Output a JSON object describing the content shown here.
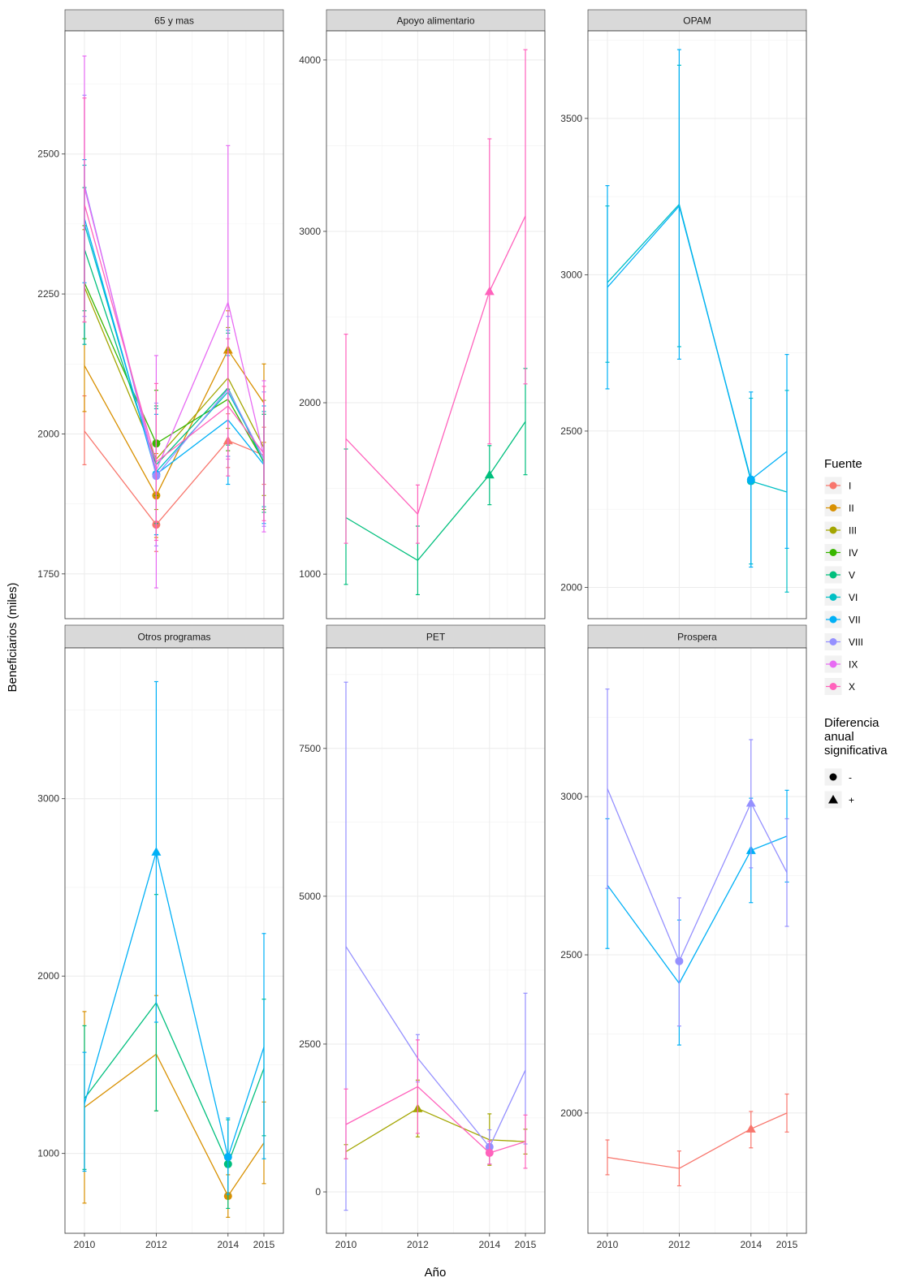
{
  "chart_data": {
    "type": "line",
    "y_axis_title": "Beneficiarios (miles)",
    "x_axis_title": "Año",
    "x_ticks": [
      "2010",
      "2012",
      "2014",
      "2015"
    ],
    "legend": {
      "placement": "right",
      "color_title": "Fuente",
      "series": [
        {
          "name": "I",
          "color": "#F8766D"
        },
        {
          "name": "II",
          "color": "#D89000"
        },
        {
          "name": "III",
          "color": "#A3A500"
        },
        {
          "name": "IV",
          "color": "#39B600"
        },
        {
          "name": "V",
          "color": "#00BF7D"
        },
        {
          "name": "VI",
          "color": "#00BFC4"
        },
        {
          "name": "VII",
          "color": "#00B0F6"
        },
        {
          "name": "VIII",
          "color": "#9590FF"
        },
        {
          "name": "IX",
          "color": "#E76BF3"
        },
        {
          "name": "X",
          "color": "#FF62BC"
        }
      ],
      "shape_title": "Diferencia anual significativa",
      "shapes": [
        {
          "label": "-",
          "shape": "circle"
        },
        {
          "label": "+",
          "shape": "triangle"
        }
      ]
    },
    "panels": [
      {
        "title": "65 y mas",
        "ylim": [
          1670,
          2720
        ],
        "yticks": [
          1750,
          2000,
          2250,
          2500
        ],
        "series": [
          {
            "fuente": "I",
            "points": [
              {
                "x": 2010,
                "y": 2005,
                "lo": 1945,
                "hi": 2068
              },
              {
                "x": 2012,
                "y": 1838,
                "lo": 1790,
                "hi": 1890,
                "marker": "circle"
              },
              {
                "x": 2014,
                "y": 1988,
                "lo": 1940,
                "hi": 2036,
                "marker": "triangle"
              },
              {
                "x": 2015,
                "y": 1962,
                "lo": 1910,
                "hi": 2012
              }
            ]
          },
          {
            "fuente": "II",
            "points": [
              {
                "x": 2010,
                "y": 2122,
                "lo": 2040,
                "hi": 2200
              },
              {
                "x": 2012,
                "y": 1890,
                "lo": 1815,
                "hi": 1965,
                "marker": "circle"
              },
              {
                "x": 2014,
                "y": 2150,
                "lo": 2080,
                "hi": 2220,
                "marker": "triangle"
              },
              {
                "x": 2015,
                "y": 2055,
                "lo": 1985,
                "hi": 2125
              }
            ]
          },
          {
            "fuente": "III",
            "points": [
              {
                "x": 2010,
                "y": 2262,
                "lo": 2160,
                "hi": 2365
              },
              {
                "x": 2012,
                "y": 1955,
                "lo": 1865,
                "hi": 2045
              },
              {
                "x": 2014,
                "y": 2100,
                "lo": 2010,
                "hi": 2190
              },
              {
                "x": 2015,
                "y": 1975,
                "lo": 1890,
                "hi": 2060
              }
            ]
          },
          {
            "fuente": "IV",
            "points": [
              {
                "x": 2010,
                "y": 2270,
                "lo": 2170,
                "hi": 2372
              },
              {
                "x": 2012,
                "y": 1983,
                "lo": 1890,
                "hi": 2078,
                "marker": "circle"
              },
              {
                "x": 2014,
                "y": 2062,
                "lo": 1970,
                "hi": 2150
              },
              {
                "x": 2015,
                "y": 1950,
                "lo": 1865,
                "hi": 2035
              }
            ]
          },
          {
            "fuente": "V",
            "points": [
              {
                "x": 2010,
                "y": 2330,
                "lo": 2220,
                "hi": 2440
              },
              {
                "x": 2012,
                "y": 1945,
                "lo": 1840,
                "hi": 2050
              },
              {
                "x": 2014,
                "y": 2082,
                "lo": 1980,
                "hi": 2180
              },
              {
                "x": 2015,
                "y": 1948,
                "lo": 1860,
                "hi": 2035
              }
            ]
          },
          {
            "fuente": "VI",
            "points": [
              {
                "x": 2010,
                "y": 2375,
                "lo": 2160,
                "hi": 2480
              },
              {
                "x": 2012,
                "y": 1932,
                "lo": 1820,
                "hi": 2045
              },
              {
                "x": 2014,
                "y": 2075,
                "lo": 1960,
                "hi": 2185
              },
              {
                "x": 2015,
                "y": 1955,
                "lo": 1870,
                "hi": 2040
              }
            ]
          },
          {
            "fuente": "VII",
            "points": [
              {
                "x": 2010,
                "y": 2385,
                "lo": 2270,
                "hi": 2490
              },
              {
                "x": 2012,
                "y": 1928,
                "lo": 1820,
                "hi": 2035,
                "marker": "circle"
              },
              {
                "x": 2014,
                "y": 2025,
                "lo": 1910,
                "hi": 2140
              },
              {
                "x": 2015,
                "y": 1945,
                "lo": 1840,
                "hi": 2050
              }
            ]
          },
          {
            "fuente": "VIII",
            "points": [
              {
                "x": 2010,
                "y": 2445,
                "lo": 2210,
                "hi": 2605
              },
              {
                "x": 2012,
                "y": 1925,
                "lo": 1800,
                "hi": 2055,
                "marker": "circle"
              },
              {
                "x": 2014,
                "y": 2080,
                "lo": 1960,
                "hi": 2210
              },
              {
                "x": 2015,
                "y": 1955,
                "lo": 1835,
                "hi": 2075
              }
            ]
          },
          {
            "fuente": "IX",
            "points": [
              {
                "x": 2010,
                "y": 2440,
                "lo": 2200,
                "hi": 2675
              },
              {
                "x": 2012,
                "y": 1935,
                "lo": 1725,
                "hi": 2140
              },
              {
                "x": 2014,
                "y": 2235,
                "lo": 1955,
                "hi": 2515
              },
              {
                "x": 2015,
                "y": 1960,
                "lo": 1825,
                "hi": 2095
              }
            ]
          },
          {
            "fuente": "X",
            "points": [
              {
                "x": 2010,
                "y": 2410,
                "lo": 2200,
                "hi": 2600
              },
              {
                "x": 2012,
                "y": 1950,
                "lo": 1810,
                "hi": 2090
              },
              {
                "x": 2014,
                "y": 2050,
                "lo": 1925,
                "hi": 2170
              },
              {
                "x": 2015,
                "y": 1965,
                "lo": 1845,
                "hi": 2085
              }
            ]
          }
        ]
      },
      {
        "title": "Apoyo alimentario",
        "ylim": [
          740,
          4170
        ],
        "yticks": [
          1000,
          2000,
          3000,
          4000
        ],
        "series": [
          {
            "fuente": "V",
            "points": [
              {
                "x": 2010,
                "y": 1330,
                "lo": 940,
                "hi": 1730
              },
              {
                "x": 2012,
                "y": 1080,
                "lo": 880,
                "hi": 1280
              },
              {
                "x": 2014,
                "y": 1580,
                "lo": 1405,
                "hi": 1750,
                "marker": "triangle"
              },
              {
                "x": 2015,
                "y": 1890,
                "lo": 1580,
                "hi": 2200
              }
            ]
          },
          {
            "fuente": "X",
            "points": [
              {
                "x": 2010,
                "y": 1790,
                "lo": 1180,
                "hi": 2400
              },
              {
                "x": 2012,
                "y": 1350,
                "lo": 1180,
                "hi": 1520
              },
              {
                "x": 2014,
                "y": 2650,
                "lo": 1760,
                "hi": 3540,
                "marker": "triangle"
              },
              {
                "x": 2015,
                "y": 3090,
                "lo": 2110,
                "hi": 4060
              }
            ]
          }
        ]
      },
      {
        "title": "OPAM",
        "ylim": [
          1900,
          3780
        ],
        "yticks": [
          2000,
          2500,
          3000,
          3500
        ],
        "series": [
          {
            "fuente": "VI",
            "points": [
              {
                "x": 2010,
                "y": 2975,
                "lo": 2720,
                "hi": 3220
              },
              {
                "x": 2012,
                "y": 3225,
                "lo": 2770,
                "hi": 3670
              },
              {
                "x": 2014,
                "y": 2340,
                "lo": 2075,
                "hi": 2605,
                "marker": "circle"
              },
              {
                "x": 2015,
                "y": 2305,
                "lo": 1985,
                "hi": 2630
              }
            ]
          },
          {
            "fuente": "VII",
            "points": [
              {
                "x": 2010,
                "y": 2960,
                "lo": 2635,
                "hi": 3285
              },
              {
                "x": 2012,
                "y": 3220,
                "lo": 2730,
                "hi": 3720
              },
              {
                "x": 2014,
                "y": 2345,
                "lo": 2065,
                "hi": 2625,
                "marker": "circle"
              },
              {
                "x": 2015,
                "y": 2435,
                "lo": 2125,
                "hi": 2745
              }
            ]
          }
        ]
      },
      {
        "title": "Otros programas",
        "ylim": [
          550,
          3850
        ],
        "yticks": [
          1000,
          2000,
          3000
        ],
        "series": [
          {
            "fuente": "II",
            "points": [
              {
                "x": 2010,
                "y": 1260,
                "lo": 720,
                "hi": 1800
              },
              {
                "x": 2012,
                "y": 1560,
                "lo": 1240,
                "hi": 1890
              },
              {
                "x": 2014,
                "y": 760,
                "lo": 640,
                "hi": 880,
                "marker": "circle"
              },
              {
                "x": 2015,
                "y": 1060,
                "lo": 830,
                "hi": 1290
              }
            ]
          },
          {
            "fuente": "V",
            "points": [
              {
                "x": 2010,
                "y": 1310,
                "lo": 910,
                "hi": 1720
              },
              {
                "x": 2012,
                "y": 1850,
                "lo": 1240,
                "hi": 2460
              },
              {
                "x": 2014,
                "y": 940,
                "lo": 690,
                "hi": 1190,
                "marker": "circle"
              },
              {
                "x": 2015,
                "y": 1480,
                "lo": 1100,
                "hi": 1870
              }
            ]
          },
          {
            "fuente": "VII",
            "points": [
              {
                "x": 2010,
                "y": 1280,
                "lo": 900,
                "hi": 1570
              },
              {
                "x": 2012,
                "y": 2700,
                "lo": 1740,
                "hi": 3660,
                "marker": "triangle"
              },
              {
                "x": 2014,
                "y": 980,
                "lo": 770,
                "hi": 1200,
                "marker": "circle"
              },
              {
                "x": 2015,
                "y": 1600,
                "lo": 970,
                "hi": 2240
              }
            ]
          }
        ]
      },
      {
        "title": "PET",
        "ylim": [
          -700,
          9200
        ],
        "yticks": [
          0,
          2500,
          5000,
          7500
        ],
        "series": [
          {
            "fuente": "III",
            "points": [
              {
                "x": 2010,
                "y": 680,
                "lo": 560,
                "hi": 800
              },
              {
                "x": 2012,
                "y": 1410,
                "lo": 930,
                "hi": 1890,
                "marker": "triangle"
              },
              {
                "x": 2014,
                "y": 880,
                "lo": 450,
                "hi": 1320
              },
              {
                "x": 2015,
                "y": 850,
                "lo": 640,
                "hi": 1060
              }
            ]
          },
          {
            "fuente": "VIII",
            "points": [
              {
                "x": 2010,
                "y": 4150,
                "lo": -310,
                "hi": 8620
              },
              {
                "x": 2012,
                "y": 2260,
                "lo": 1860,
                "hi": 2660
              },
              {
                "x": 2014,
                "y": 760,
                "lo": 470,
                "hi": 1050,
                "marker": "circle"
              },
              {
                "x": 2015,
                "y": 2060,
                "lo": 810,
                "hi": 3360
              }
            ]
          },
          {
            "fuente": "X",
            "points": [
              {
                "x": 2010,
                "y": 1140,
                "lo": 560,
                "hi": 1740
              },
              {
                "x": 2012,
                "y": 1780,
                "lo": 990,
                "hi": 2570
              },
              {
                "x": 2014,
                "y": 660,
                "lo": 470,
                "hi": 860,
                "marker": "circle"
              },
              {
                "x": 2015,
                "y": 850,
                "lo": 400,
                "hi": 1300
              }
            ]
          }
        ]
      },
      {
        "title": "Prospera",
        "ylim": [
          1620,
          3470
        ],
        "yticks": [
          2000,
          2500,
          3000
        ],
        "series": [
          {
            "fuente": "I",
            "points": [
              {
                "x": 2010,
                "y": 1860,
                "lo": 1805,
                "hi": 1915
              },
              {
                "x": 2012,
                "y": 1825,
                "lo": 1770,
                "hi": 1880
              },
              {
                "x": 2014,
                "y": 1950,
                "lo": 1890,
                "hi": 2005,
                "marker": "triangle"
              },
              {
                "x": 2015,
                "y": 2000,
                "lo": 1940,
                "hi": 2060
              }
            ]
          },
          {
            "fuente": "VII",
            "points": [
              {
                "x": 2010,
                "y": 2720,
                "lo": 2520,
                "hi": 2930
              },
              {
                "x": 2012,
                "y": 2410,
                "lo": 2215,
                "hi": 2610
              },
              {
                "x": 2014,
                "y": 2830,
                "lo": 2665,
                "hi": 2995,
                "marker": "triangle"
              },
              {
                "x": 2015,
                "y": 2875,
                "lo": 2730,
                "hi": 3020
              }
            ]
          },
          {
            "fuente": "VIII",
            "points": [
              {
                "x": 2010,
                "y": 3025,
                "lo": 2710,
                "hi": 3340
              },
              {
                "x": 2012,
                "y": 2480,
                "lo": 2275,
                "hi": 2680,
                "marker": "circle"
              },
              {
                "x": 2014,
                "y": 2980,
                "lo": 2775,
                "hi": 3180,
                "marker": "triangle"
              },
              {
                "x": 2015,
                "y": 2760,
                "lo": 2590,
                "hi": 2930
              }
            ]
          }
        ]
      }
    ]
  }
}
